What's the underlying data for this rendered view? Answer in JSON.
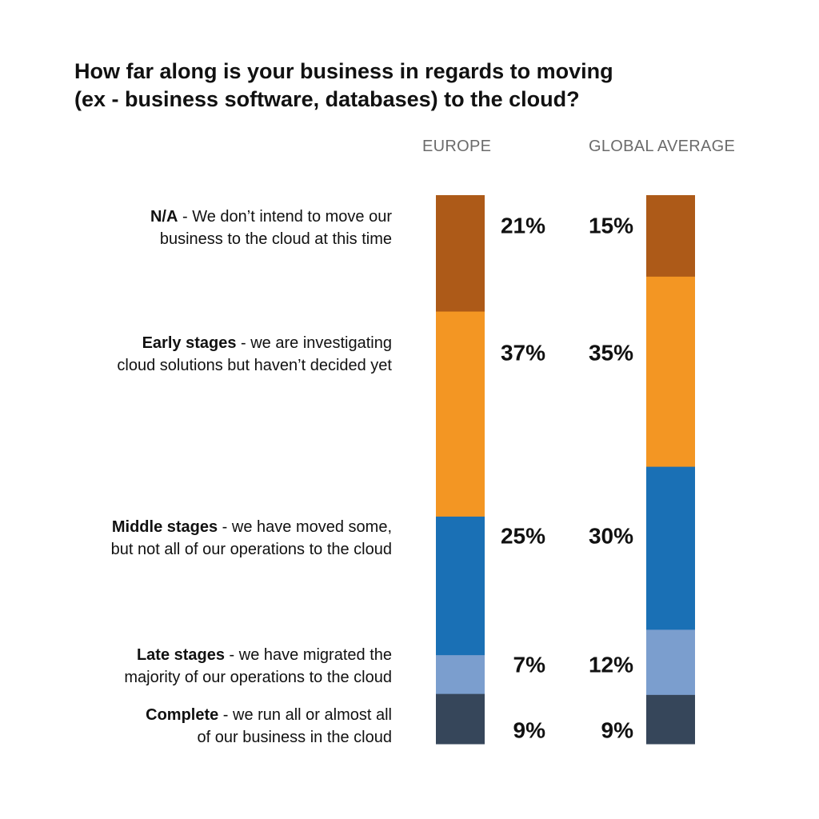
{
  "chart_data": {
    "type": "bar",
    "stacked": true,
    "title": [
      "How far along is your business in regards to moving",
      "(ex - business software, databases) to the cloud?"
    ],
    "series": [
      {
        "name": "EUROPE",
        "values": [
          21,
          37,
          25,
          7,
          9
        ],
        "labels": [
          "21%",
          "37%",
          "25%",
          "7%",
          "9%"
        ]
      },
      {
        "name": "GLOBAL AVERAGE",
        "values": [
          15,
          35,
          30,
          12,
          9
        ],
        "labels": [
          "15%",
          "35%",
          "30%",
          "12%",
          "9%"
        ]
      }
    ],
    "categories": [
      {
        "key": "N/A",
        "lines": [
          [
            "N/A",
            " - We don’t intend to move our"
          ],
          [
            "",
            "business to the cloud at this time"
          ]
        ],
        "color": "#ad5a18"
      },
      {
        "key": "Early stages",
        "lines": [
          [
            "Early stages",
            " - we are investigating"
          ],
          [
            "",
            "cloud solutions but haven’t decided yet"
          ]
        ],
        "color": "#f39623"
      },
      {
        "key": "Middle stages",
        "lines": [
          [
            "Middle stages",
            " - we have moved some,"
          ],
          [
            "",
            "but not all of our operations to the cloud"
          ]
        ],
        "color": "#1a70b5"
      },
      {
        "key": "Late stages",
        "lines": [
          [
            "Late stages",
            " - we have migrated the"
          ],
          [
            "",
            "majority of our operations to the cloud"
          ]
        ],
        "color": "#7b9ece"
      },
      {
        "key": "Complete",
        "lines": [
          [
            "Complete",
            " - we run all or almost all"
          ],
          [
            "",
            "of our business in the cloud"
          ]
        ],
        "color": "#36465a"
      }
    ],
    "legend": "none",
    "grid": false
  }
}
